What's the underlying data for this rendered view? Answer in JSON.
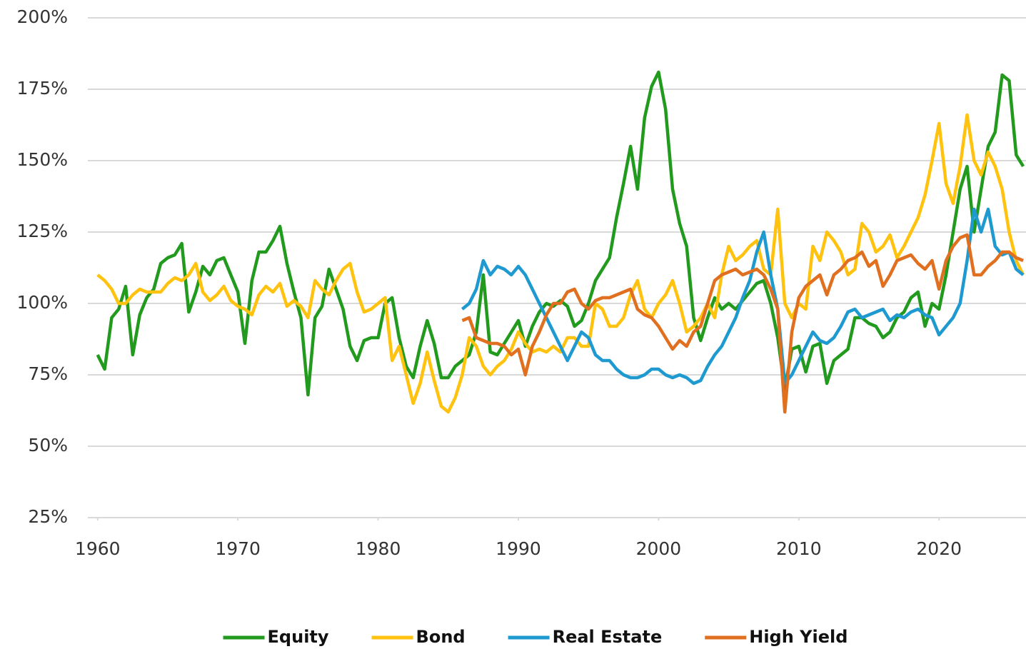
{
  "chart_data": {
    "type": "line",
    "x": [
      1960,
      1960.5,
      1961,
      1961.5,
      1962,
      1962.5,
      1963,
      1963.5,
      1964,
      1964.5,
      1965,
      1965.5,
      1966,
      1966.5,
      1967,
      1967.5,
      1968,
      1968.5,
      1969,
      1969.5,
      1970,
      1970.5,
      1971,
      1971.5,
      1972,
      1972.5,
      1973,
      1973.5,
      1974,
      1974.5,
      1975,
      1975.5,
      1976,
      1976.5,
      1977,
      1977.5,
      1978,
      1978.5,
      1979,
      1979.5,
      1980,
      1980.5,
      1981,
      1981.5,
      1982,
      1982.5,
      1983,
      1983.5,
      1984,
      1984.5,
      1985,
      1985.5,
      1986,
      1986.5,
      1987,
      1987.5,
      1988,
      1988.5,
      1989,
      1989.5,
      1990,
      1990.5,
      1991,
      1991.5,
      1992,
      1992.5,
      1993,
      1993.5,
      1994,
      1994.5,
      1995,
      1995.5,
      1996,
      1996.5,
      1997,
      1997.5,
      1998,
      1998.5,
      1999,
      1999.5,
      2000,
      2000.5,
      2001,
      2001.5,
      2002,
      2002.5,
      2003,
      2003.5,
      2004,
      2004.5,
      2005,
      2005.5,
      2006,
      2006.5,
      2007,
      2007.5,
      2008,
      2008.5,
      2009,
      2009.5,
      2010,
      2010.5,
      2011,
      2011.5,
      2012,
      2012.5,
      2013,
      2013.5,
      2014,
      2014.5,
      2015,
      2015.5,
      2016,
      2016.5,
      2017,
      2017.5,
      2018,
      2018.5,
      2019,
      2019.5,
      2020,
      2020.5,
      2021,
      2021.5,
      2022,
      2022.5,
      2023,
      2023.5,
      2024,
      2024.5,
      2025,
      2025.5,
      2026
    ],
    "series": [
      {
        "name": "Equity",
        "color": "#229a1e",
        "values": [
          82,
          77,
          95,
          98,
          106,
          82,
          96,
          102,
          105,
          114,
          116,
          117,
          121,
          97,
          104,
          113,
          110,
          115,
          116,
          110,
          104,
          86,
          108,
          118,
          118,
          122,
          127,
          114,
          104,
          95,
          68,
          95,
          99,
          112,
          105,
          98,
          85,
          80,
          87,
          88,
          88,
          100,
          102,
          88,
          78,
          74,
          85,
          94,
          86,
          74,
          74,
          78,
          80,
          82,
          90,
          110,
          83,
          82,
          86,
          90,
          94,
          85,
          92,
          97,
          100,
          99,
          101,
          99,
          92,
          94,
          100,
          108,
          112,
          116,
          130,
          142,
          155,
          140,
          165,
          176,
          181,
          168,
          140,
          128,
          120,
          95,
          87,
          95,
          102,
          98,
          100,
          98,
          101,
          104,
          107,
          108,
          100,
          88,
          70,
          84,
          85,
          76,
          85,
          86,
          72,
          80,
          82,
          84,
          95,
          95,
          93,
          92,
          88,
          90,
          95,
          97,
          102,
          104,
          92,
          100,
          98,
          110,
          125,
          140,
          148,
          125,
          140,
          155,
          160,
          180,
          178,
          152,
          148
        ]
      },
      {
        "name": "Bond",
        "color": "#ffc20e",
        "values": [
          110,
          108,
          105,
          100,
          100,
          103,
          105,
          104,
          104,
          104,
          107,
          109,
          108,
          110,
          114,
          104,
          101,
          103,
          106,
          101,
          99,
          98,
          96,
          103,
          106,
          104,
          107,
          99,
          101,
          99,
          95,
          108,
          105,
          103,
          108,
          112,
          114,
          104,
          97,
          98,
          100,
          102,
          80,
          85,
          75,
          65,
          72,
          83,
          73,
          64,
          62,
          67,
          75,
          88,
          85,
          78,
          75,
          78,
          80,
          84,
          90,
          86,
          83,
          84,
          83,
          85,
          83,
          88,
          88,
          85,
          85,
          100,
          98,
          92,
          92,
          95,
          103,
          108,
          98,
          95,
          100,
          103,
          108,
          100,
          90,
          92,
          95,
          100,
          95,
          110,
          120,
          115,
          117,
          120,
          122,
          112,
          110,
          133,
          100,
          95,
          100,
          98,
          120,
          115,
          125,
          122,
          118,
          110,
          112,
          128,
          125,
          118,
          120,
          124,
          116,
          120,
          125,
          130,
          138,
          150,
          163,
          142,
          135,
          148,
          166,
          150,
          145,
          153,
          148,
          140,
          125,
          115,
          110
        ]
      },
      {
        "name": "Real Estate",
        "color": "#1f9ad0",
        "values": [
          null,
          null,
          null,
          null,
          null,
          null,
          null,
          null,
          null,
          null,
          null,
          null,
          null,
          null,
          null,
          null,
          null,
          null,
          null,
          null,
          null,
          null,
          null,
          null,
          null,
          null,
          null,
          null,
          null,
          null,
          null,
          null,
          null,
          null,
          null,
          null,
          null,
          null,
          null,
          null,
          null,
          null,
          null,
          null,
          null,
          null,
          null,
          null,
          null,
          null,
          null,
          null,
          98,
          100,
          105,
          115,
          110,
          113,
          112,
          110,
          113,
          110,
          105,
          100,
          95,
          90,
          85,
          80,
          85,
          90,
          88,
          82,
          80,
          80,
          77,
          75,
          74,
          74,
          75,
          77,
          77,
          75,
          74,
          75,
          74,
          72,
          73,
          78,
          82,
          85,
          90,
          95,
          102,
          108,
          118,
          125,
          110,
          98,
          72,
          75,
          80,
          85,
          90,
          87,
          86,
          88,
          92,
          97,
          98,
          95,
          96,
          97,
          98,
          94,
          96,
          95,
          97,
          98,
          96,
          95,
          89,
          92,
          95,
          100,
          115,
          133,
          125,
          133,
          120,
          117,
          118,
          112,
          110
        ]
      },
      {
        "name": "High Yield",
        "color": "#e07020",
        "values": [
          null,
          null,
          null,
          null,
          null,
          null,
          null,
          null,
          null,
          null,
          null,
          null,
          null,
          null,
          null,
          null,
          null,
          null,
          null,
          null,
          null,
          null,
          null,
          null,
          null,
          null,
          null,
          null,
          null,
          null,
          null,
          null,
          null,
          null,
          null,
          null,
          null,
          null,
          null,
          null,
          null,
          null,
          null,
          null,
          null,
          null,
          null,
          null,
          null,
          null,
          null,
          null,
          94,
          95,
          88,
          87,
          86,
          86,
          85,
          82,
          84,
          75,
          85,
          90,
          96,
          100,
          100,
          104,
          105,
          100,
          98,
          101,
          102,
          102,
          103,
          104,
          105,
          98,
          96,
          95,
          92,
          88,
          84,
          87,
          85,
          90,
          92,
          100,
          108,
          110,
          111,
          112,
          110,
          111,
          112,
          110,
          105,
          98,
          62,
          90,
          102,
          106,
          108,
          110,
          103,
          110,
          112,
          115,
          116,
          118,
          113,
          115,
          106,
          110,
          115,
          116,
          117,
          114,
          112,
          115,
          105,
          115,
          120,
          123,
          124,
          110,
          110,
          113,
          115,
          118,
          118,
          116,
          115
        ]
      }
    ],
    "xlim": [
      1959.3,
      2026.2
    ],
    "xticks": [
      1960,
      1970,
      1980,
      1990,
      2000,
      2010,
      2020
    ],
    "ylim": [
      25,
      200
    ],
    "yticks": [
      {
        "value": 25,
        "label": "25%"
      },
      {
        "value": 50,
        "label": "50%"
      },
      {
        "value": 75,
        "label": "75%"
      },
      {
        "value": 100,
        "label": "100%"
      },
      {
        "value": 125,
        "label": "125%"
      },
      {
        "value": 150,
        "label": "150%"
      },
      {
        "value": 175,
        "label": "175%"
      },
      {
        "value": 200,
        "label": "200%"
      }
    ],
    "grid": true,
    "legend": "bottom"
  }
}
